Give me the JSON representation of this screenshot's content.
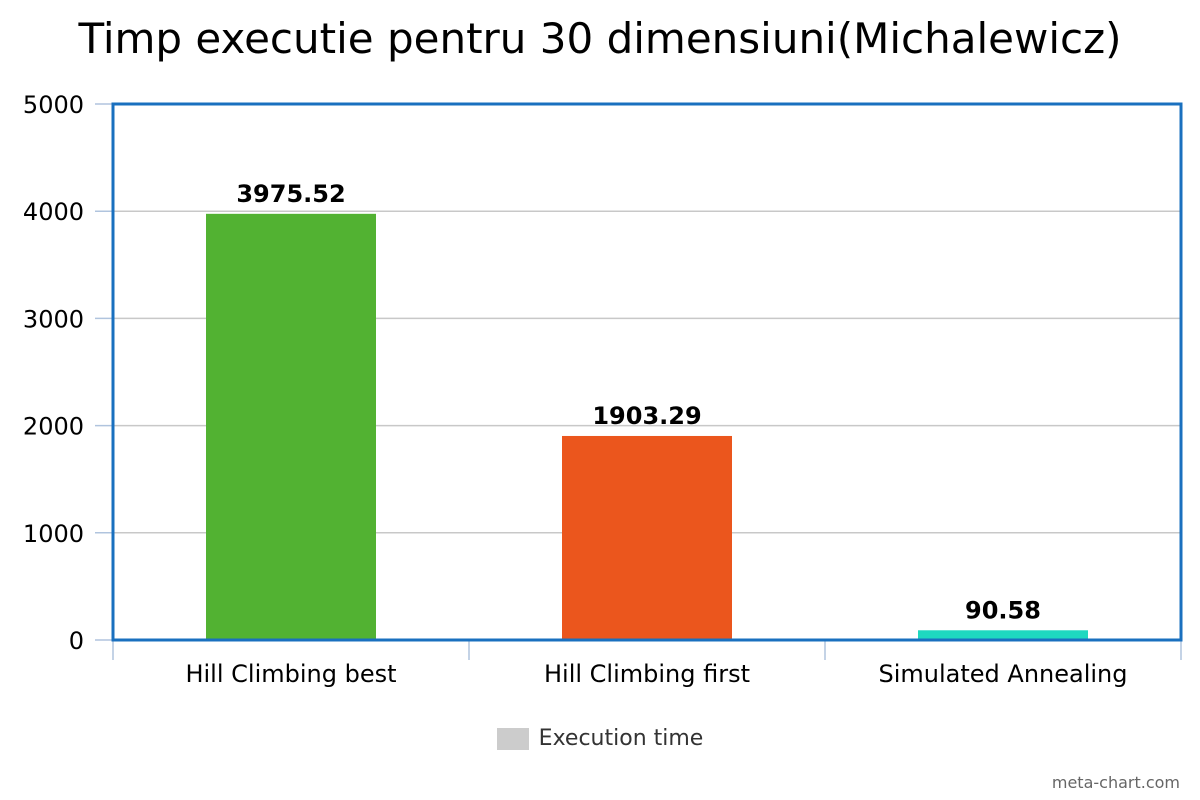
{
  "chart_data": {
    "type": "bar",
    "title": "Timp executie pentru 30 dimensiuni(Michalewicz)",
    "categories": [
      "Hill Climbing best",
      "Hill Climbing first",
      "Simulated Annealing"
    ],
    "series": [
      {
        "name": "Execution time",
        "values": [
          3975.52,
          1903.29,
          90.58
        ],
        "data_labels": [
          "3975.52",
          "1903.29",
          "90.58"
        ]
      }
    ],
    "bar_colors": [
      "#52b232",
      "#eb561d",
      "#1ed8c0"
    ],
    "legend_color": "#cccccc",
    "frame_color": "#1a70bf",
    "grid_color": "#c8c8c8",
    "ylim": [
      0,
      5000
    ],
    "yticks": [
      0,
      1000,
      2000,
      3000,
      4000,
      5000
    ],
    "xlabel": "",
    "ylabel": "",
    "grid": true,
    "legend_position": "bottom-center"
  },
  "credit": "meta-chart.com"
}
